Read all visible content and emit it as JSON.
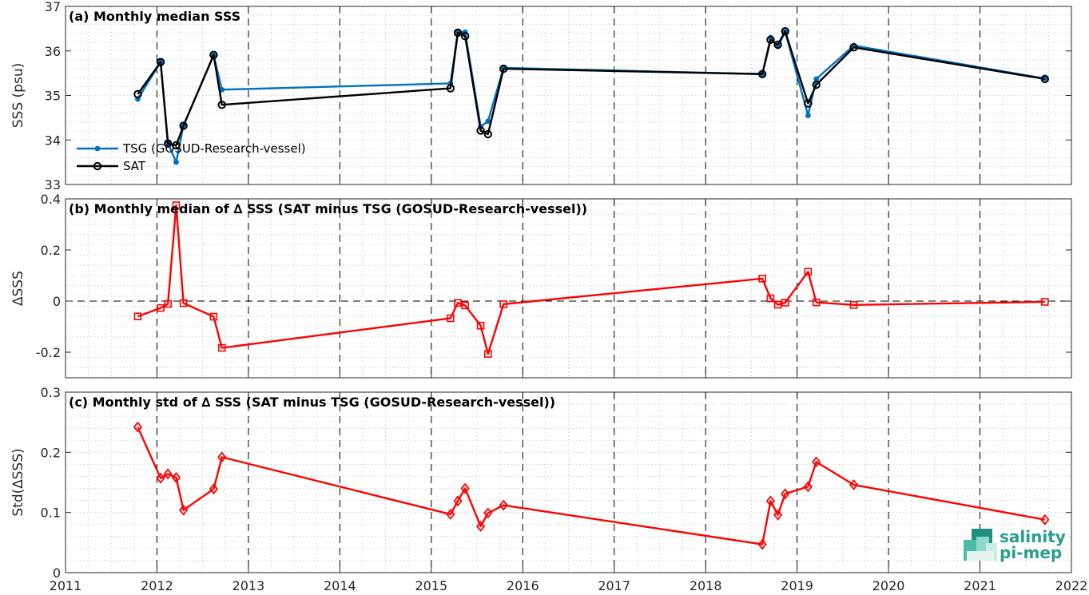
{
  "chart_data": [
    {
      "type": "line",
      "title": "(a) Monthly median SSS",
      "ylabel": "SSS (psu)",
      "xlim": [
        2011,
        2022
      ],
      "ylim": [
        33,
        37
      ],
      "xticks": [
        "2011",
        "2012",
        "2013",
        "2014",
        "2015",
        "2016",
        "2017",
        "2018",
        "2019",
        "2020",
        "2021",
        "2022"
      ],
      "yticks": [
        "33",
        "34",
        "35",
        "36",
        "37"
      ],
      "grid": true,
      "legend_position": "bottom-left",
      "series": [
        {
          "name": "TSG (GOSUD-Research-vessel)",
          "color": "#0072bd",
          "marker": "dot",
          "x": [
            2011.79,
            2012.04,
            2012.12,
            2012.21,
            2012.29,
            2012.62,
            2012.71,
            2015.21,
            2015.29,
            2015.37,
            2015.54,
            2015.62,
            2015.79,
            2018.62,
            2018.71,
            2018.79,
            2018.87,
            2019.12,
            2019.21,
            2019.62,
            2021.71
          ],
          "y": [
            34.92,
            35.75,
            33.93,
            33.5,
            34.33,
            35.9,
            35.13,
            35.27,
            36.42,
            36.42,
            34.3,
            34.42,
            35.62,
            35.48,
            36.3,
            36.1,
            36.43,
            34.55,
            35.37,
            36.12,
            35.38
          ]
        },
        {
          "name": "SAT",
          "color": "#000000",
          "marker": "circle",
          "x": [
            2011.79,
            2012.04,
            2012.12,
            2012.21,
            2012.29,
            2012.62,
            2012.71,
            2015.21,
            2015.29,
            2015.37,
            2015.54,
            2015.62,
            2015.79,
            2018.62,
            2018.71,
            2018.79,
            2018.87,
            2019.12,
            2019.21,
            2019.62,
            2021.71
          ],
          "y": [
            35.03,
            35.75,
            33.92,
            33.88,
            34.32,
            35.91,
            34.79,
            35.16,
            36.41,
            36.33,
            34.21,
            34.13,
            35.6,
            35.48,
            36.25,
            36.14,
            36.44,
            34.82,
            35.24,
            36.08,
            35.37
          ]
        }
      ]
    },
    {
      "type": "line",
      "title": "(b) Monthly median of ∆ SSS (SAT minus TSG (GOSUD-Research-vessel))",
      "ylabel": "∆SSS",
      "xlim": [
        2011,
        2022
      ],
      "ylim": [
        -0.3,
        0.4
      ],
      "xticks": [
        "2011",
        "2012",
        "2013",
        "2014",
        "2015",
        "2016",
        "2017",
        "2018",
        "2019",
        "2020",
        "2021",
        "2022"
      ],
      "yticks": [
        "-0.2",
        "0",
        "0.2",
        "0.4"
      ],
      "grid": true,
      "series": [
        {
          "color": "#ff0000",
          "marker": "square",
          "x": [
            2011.79,
            2012.04,
            2012.12,
            2012.21,
            2012.29,
            2012.62,
            2012.71,
            2015.21,
            2015.29,
            2015.37,
            2015.54,
            2015.62,
            2015.79,
            2018.62,
            2018.71,
            2018.79,
            2018.87,
            2019.12,
            2019.21,
            2019.62,
            2021.71
          ],
          "y": [
            -0.06,
            -0.027,
            -0.011,
            0.375,
            -0.008,
            -0.061,
            -0.183,
            -0.067,
            -0.007,
            -0.017,
            -0.096,
            -0.207,
            -0.012,
            0.088,
            0.011,
            -0.014,
            -0.006,
            0.115,
            -0.005,
            -0.015,
            -0.003
          ]
        }
      ]
    },
    {
      "type": "line",
      "title": "(c) Monthly std of ∆ SSS (SAT minus TSG (GOSUD-Research-vessel))",
      "ylabel": "Std(∆SSS)",
      "xlim": [
        2011,
        2022
      ],
      "ylim": [
        0,
        0.3
      ],
      "xticks": [
        "2011",
        "2012",
        "2013",
        "2014",
        "2015",
        "2016",
        "2017",
        "2018",
        "2019",
        "2020",
        "2021",
        "2022"
      ],
      "yticks": [
        "0",
        "0.1",
        "0.2",
        "0.3"
      ],
      "grid": true,
      "series": [
        {
          "color": "#ff0000",
          "marker": "diamond",
          "x": [
            2011.79,
            2012.04,
            2012.12,
            2012.21,
            2012.29,
            2012.62,
            2012.71,
            2015.21,
            2015.29,
            2015.37,
            2015.54,
            2015.62,
            2015.79,
            2018.62,
            2018.71,
            2018.79,
            2018.87,
            2019.12,
            2019.21,
            2019.62,
            2021.71
          ],
          "y": [
            0.242,
            0.157,
            0.164,
            0.158,
            0.104,
            0.139,
            0.192,
            0.097,
            0.119,
            0.14,
            0.077,
            0.099,
            0.112,
            0.047,
            0.119,
            0.096,
            0.131,
            0.143,
            0.184,
            0.146,
            0.088
          ]
        }
      ]
    }
  ],
  "logo": {
    "line1": "salinity",
    "line2": "pi-mep",
    "color": "#2a9d8f"
  }
}
